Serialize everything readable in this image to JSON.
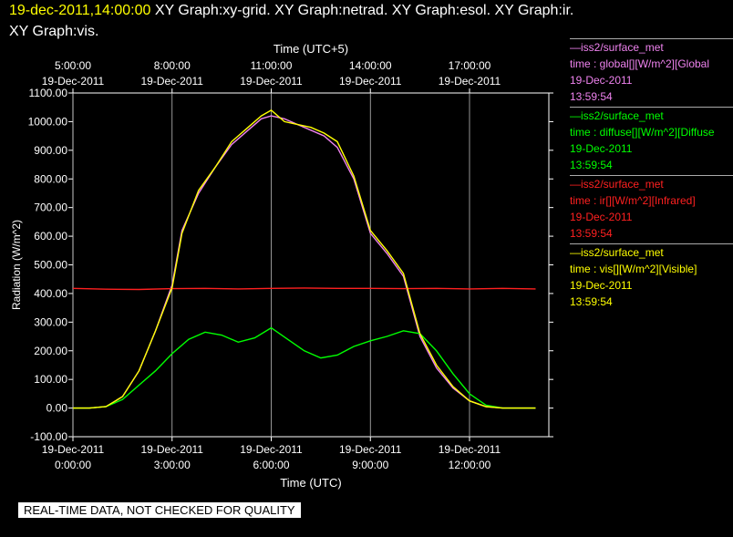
{
  "header": {
    "timestamp": "19-dec-2011,14:00:00",
    "graphs_line1": "XY Graph:xy-grid.  XY Graph:netrad.  XY Graph:esol.  XY Graph:ir.",
    "graphs_line2": "XY Graph:vis."
  },
  "chart_data": {
    "type": "line",
    "ylabel": "Radiation (W/m^2)",
    "xlabel": "Time (UTC)",
    "x2label": "Time (UTC+5)",
    "ylim": [
      -100,
      1100
    ],
    "yticks": [
      "-100.00",
      "0.00",
      "100.00",
      "200.00",
      "300.00",
      "400.00",
      "500.00",
      "600.00",
      "700.00",
      "800.00",
      "900.00",
      "1000.00",
      "1100.00"
    ],
    "xlim": [
      0,
      14.4
    ],
    "xticks": [
      {
        "x": 0,
        "date": "19-Dec-2011",
        "time": "0:00:00"
      },
      {
        "x": 3,
        "date": "19-Dec-2011",
        "time": "3:00:00"
      },
      {
        "x": 6,
        "date": "19-Dec-2011",
        "time": "6:00:00"
      },
      {
        "x": 9,
        "date": "19-Dec-2011",
        "time": "9:00:00"
      },
      {
        "x": 12,
        "date": "19-Dec-2011",
        "time": "12:00:00"
      }
    ],
    "x2ticks": [
      {
        "x": 0,
        "time": "5:00:00",
        "date": "19-Dec-2011"
      },
      {
        "x": 3,
        "time": "8:00:00",
        "date": "19-Dec-2011"
      },
      {
        "x": 6,
        "time": "11:00:00",
        "date": "19-Dec-2011"
      },
      {
        "x": 9,
        "time": "14:00:00",
        "date": "19-Dec-2011"
      },
      {
        "x": 12,
        "time": "17:00:00",
        "date": "19-Dec-2011"
      }
    ],
    "grid": true,
    "series": [
      {
        "name": "global",
        "color": "#ee82ee",
        "x": [
          0,
          0.5,
          1,
          1.5,
          2,
          2.5,
          3,
          3.3,
          3.8,
          4.3,
          4.8,
          5.3,
          5.7,
          6,
          6.4,
          6.8,
          7.2,
          7.6,
          8,
          8.5,
          9,
          9.5,
          10,
          10.5,
          11,
          11.5,
          12,
          12.5,
          13,
          14
        ],
        "y": [
          0,
          0,
          5,
          40,
          130,
          270,
          430,
          620,
          750,
          840,
          920,
          970,
          1010,
          1020,
          1010,
          990,
          970,
          950,
          910,
          800,
          610,
          540,
          460,
          250,
          140,
          70,
          25,
          5,
          0,
          0
        ]
      },
      {
        "name": "diffuse",
        "color": "#00ff00",
        "x": [
          0,
          0.5,
          1,
          1.5,
          2,
          2.5,
          3,
          3.5,
          4,
          4.5,
          5,
          5.5,
          6,
          6.5,
          7,
          7.5,
          8,
          8.5,
          9,
          9.5,
          10,
          10.5,
          11,
          11.5,
          12,
          12.5,
          13,
          14
        ],
        "y": [
          0,
          0,
          5,
          30,
          80,
          130,
          190,
          240,
          265,
          255,
          230,
          245,
          280,
          240,
          200,
          175,
          185,
          215,
          235,
          250,
          270,
          260,
          200,
          120,
          50,
          10,
          0,
          0
        ]
      },
      {
        "name": "ir",
        "color": "#ff2020",
        "x": [
          0,
          1,
          2,
          3,
          4,
          5,
          6,
          7,
          8,
          9,
          10,
          11,
          12,
          13,
          14
        ],
        "y": [
          418,
          415,
          414,
          417,
          418,
          416,
          418,
          419,
          418,
          418,
          417,
          418,
          416,
          418,
          416
        ]
      },
      {
        "name": "vis",
        "color": "#ffff00",
        "x": [
          0,
          0.5,
          1,
          1.5,
          2,
          2.5,
          3,
          3.3,
          3.8,
          4.3,
          4.8,
          5.3,
          5.7,
          6,
          6.4,
          6.8,
          7.2,
          7.6,
          8,
          8.5,
          9,
          9.5,
          10,
          10.5,
          11,
          11.5,
          12,
          12.5,
          13,
          14
        ],
        "y": [
          0,
          0,
          5,
          40,
          130,
          270,
          420,
          610,
          760,
          840,
          930,
          980,
          1020,
          1040,
          1000,
          990,
          980,
          960,
          930,
          810,
          620,
          550,
          470,
          260,
          150,
          75,
          25,
          5,
          0,
          0
        ]
      }
    ]
  },
  "legend": [
    {
      "source": "—iss2/surface_met",
      "var": "time : global[][W/m^2][Global",
      "date": "19-Dec-2011",
      "time": "13:59:54",
      "color": "#ee82ee"
    },
    {
      "source": "—iss2/surface_met",
      "var": "time : diffuse[][W/m^2][Diffuse",
      "date": "19-Dec-2011",
      "time": "13:59:54",
      "color": "#00ff00"
    },
    {
      "source": "—iss2/surface_met",
      "var": "time : ir[][W/m^2][Infrared]",
      "date": "19-Dec-2011",
      "time": "13:59:54",
      "color": "#ff2020"
    },
    {
      "source": "—iss2/surface_met",
      "var": "time : vis[][W/m^2][Visible]",
      "date": "19-Dec-2011",
      "time": "13:59:54",
      "color": "#ffff00"
    }
  ],
  "footer": {
    "disclaimer": "REAL-TIME DATA, NOT CHECKED FOR QUALITY"
  }
}
